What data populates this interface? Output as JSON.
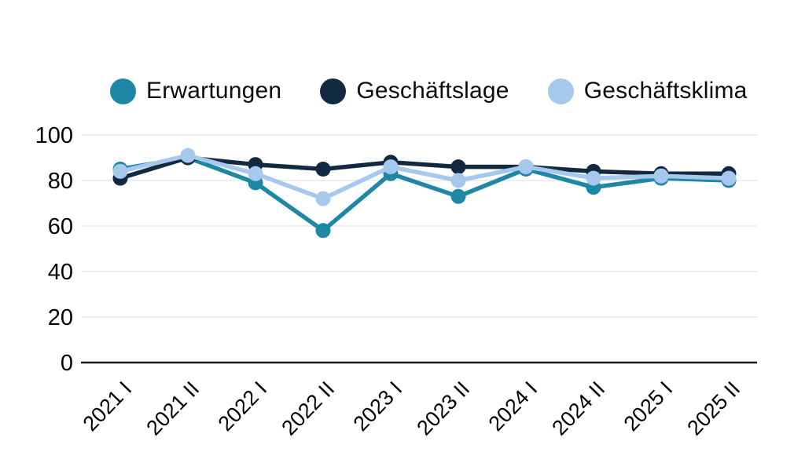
{
  "chart_data": {
    "type": "line",
    "categories": [
      "2021 I",
      "2021 II",
      "2022 I",
      "2022 II",
      "2023 I",
      "2023 II",
      "2024 I",
      "2024 II",
      "2025 I",
      "2025 II"
    ],
    "series": [
      {
        "name": "Erwartungen",
        "color": "#1e87a6",
        "values": [
          85,
          90,
          79,
          58,
          83,
          73,
          85,
          77,
          81,
          80
        ]
      },
      {
        "name": "Geschäftslage",
        "color": "#122a40",
        "values": [
          81,
          90,
          87,
          85,
          88,
          86,
          86,
          84,
          83,
          83
        ]
      },
      {
        "name": "Geschäftsklima",
        "color": "#a6c8ed",
        "values": [
          84,
          91,
          83,
          72,
          86,
          80,
          86,
          81,
          82,
          81
        ]
      }
    ],
    "title": "",
    "xlabel": "",
    "ylabel": "",
    "ylim": [
      0,
      100
    ],
    "yticks": [
      0,
      20,
      40,
      60,
      80,
      100
    ],
    "grid": true,
    "legend_position": "top"
  },
  "colors": {
    "background": "#ffffff",
    "grid": "#e8e8e8",
    "axis": "#1a1a1a",
    "tick_text": "#000000"
  }
}
